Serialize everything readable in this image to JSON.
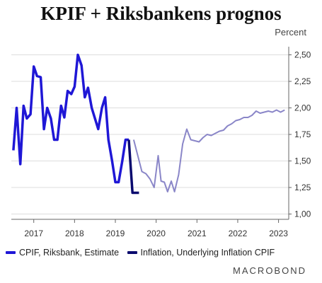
{
  "title": "KPIF + Riksbankens prognos",
  "unit_label": "Percent",
  "brand": "MACROBOND",
  "colors": {
    "estimate": "#8a86c8",
    "actual": "#1f17d6",
    "actual_tail": "#0a0a6e",
    "grid": "#dddddd",
    "axis": "#666666"
  },
  "chart_data": {
    "type": "line",
    "x_range": [
      2016.45,
      2023.25
    ],
    "ylim": [
      0.95,
      2.55
    ],
    "y_ticks": [
      1.0,
      1.25,
      1.5,
      1.75,
      2.0,
      2.25,
      2.5
    ],
    "y_tick_labels": [
      "1,00",
      "1,25",
      "1,50",
      "1,75",
      "2,00",
      "2,25",
      "2,50"
    ],
    "x_ticks": [
      2017,
      2018,
      2019,
      2020,
      2021,
      2022,
      2023
    ],
    "x_tick_labels": [
      "2017",
      "2018",
      "2019",
      "2020",
      "2021",
      "2022",
      "2023"
    ],
    "grid": "horizontal",
    "legend_position": "bottom",
    "series": [
      {
        "name": "CPIF, Riksbank, Estimate",
        "style": "thin",
        "x": [
          2019.45,
          2019.55,
          2019.65,
          2019.75,
          2019.85,
          2019.95,
          2020.05,
          2020.12,
          2020.2,
          2020.28,
          2020.37,
          2020.45,
          2020.55,
          2020.65,
          2020.75,
          2020.85,
          2020.95,
          2021.05,
          2021.15,
          2021.25,
          2021.35,
          2021.45,
          2021.55,
          2021.65,
          2021.75,
          2021.85,
          2021.95,
          2022.05,
          2022.15,
          2022.25,
          2022.35,
          2022.45,
          2022.55,
          2022.65,
          2022.75,
          2022.85,
          2022.95,
          2023.05,
          2023.15
        ],
        "values": [
          1.7,
          1.55,
          1.4,
          1.38,
          1.33,
          1.25,
          1.55,
          1.31,
          1.3,
          1.21,
          1.31,
          1.21,
          1.37,
          1.66,
          1.8,
          1.7,
          1.69,
          1.68,
          1.72,
          1.75,
          1.74,
          1.76,
          1.78,
          1.79,
          1.83,
          1.85,
          1.88,
          1.89,
          1.91,
          1.91,
          1.93,
          1.97,
          1.95,
          1.96,
          1.97,
          1.96,
          1.98,
          1.96,
          1.98
        ]
      },
      {
        "name": "Inflation, Underlying Inflation CPIF",
        "style": "thick",
        "x": [
          2016.5,
          2016.58,
          2016.67,
          2016.75,
          2016.83,
          2016.92,
          2017.0,
          2017.08,
          2017.17,
          2017.25,
          2017.33,
          2017.42,
          2017.5,
          2017.58,
          2017.67,
          2017.75,
          2017.83,
          2017.92,
          2018.0,
          2018.08,
          2018.17,
          2018.25,
          2018.33,
          2018.42,
          2018.5,
          2018.58,
          2018.67,
          2018.75,
          2018.83,
          2018.92,
          2019.0,
          2019.08,
          2019.17,
          2019.25,
          2019.33,
          2019.42,
          2019.5,
          2019.58
        ],
        "values": [
          1.6,
          2.0,
          1.47,
          2.02,
          1.9,
          1.94,
          2.39,
          2.3,
          2.29,
          1.8,
          2.0,
          1.9,
          1.7,
          1.7,
          2.02,
          1.91,
          2.16,
          2.13,
          2.2,
          2.5,
          2.4,
          2.1,
          2.19,
          2.0,
          1.9,
          1.8,
          2.0,
          2.1,
          1.7,
          1.5,
          1.3,
          1.3,
          1.5,
          1.7,
          1.7,
          1.2,
          1.2,
          1.2
        ]
      }
    ]
  }
}
